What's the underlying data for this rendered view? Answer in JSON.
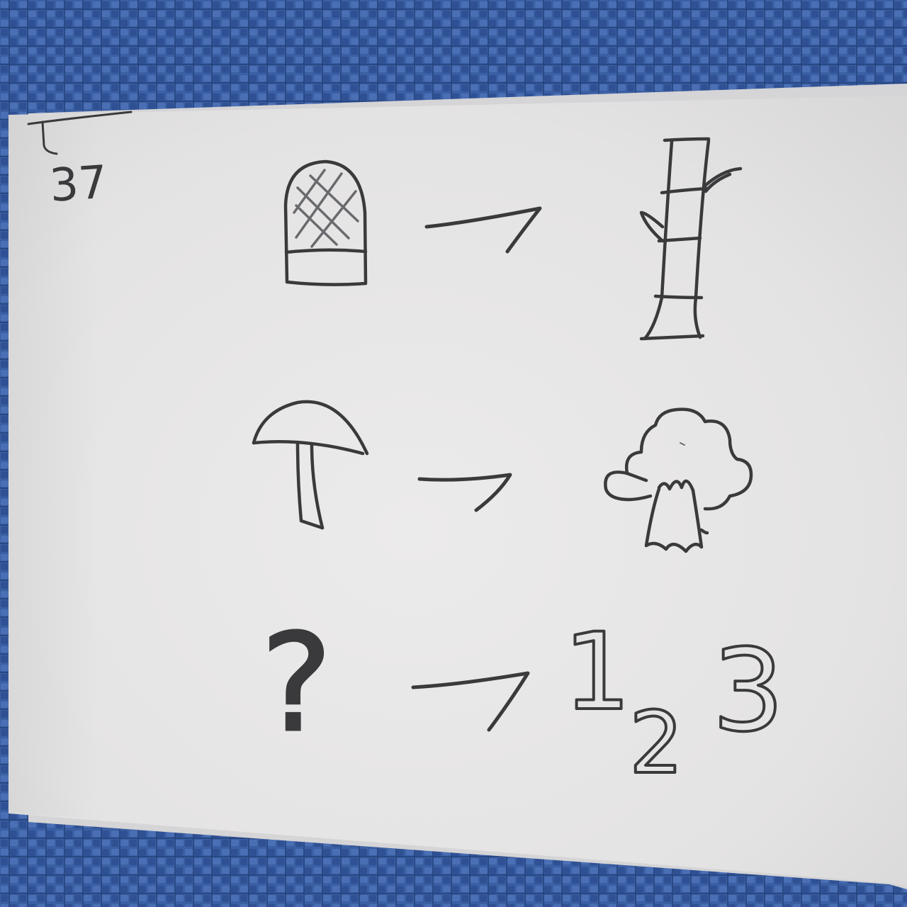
{
  "card": {
    "corner_number": "37"
  },
  "rows": [
    {
      "left": "basket-icon",
      "arrow": "arrow-icon",
      "right": "bamboo-icon"
    },
    {
      "left": "mushroom-icon",
      "arrow": "arrow-icon",
      "right": "tree-stump-icon"
    },
    {
      "left": "question-mark",
      "arrow": "arrow-icon",
      "right": "numbers"
    }
  ],
  "riddle": {
    "question_mark": "?",
    "digits": [
      "1",
      "2",
      "3"
    ]
  },
  "colors": {
    "fabric": "#3b5fa3",
    "fabric_dark": "#2c4a86",
    "paper": "#e9e8e8",
    "pencil": "#3a3a3c"
  }
}
